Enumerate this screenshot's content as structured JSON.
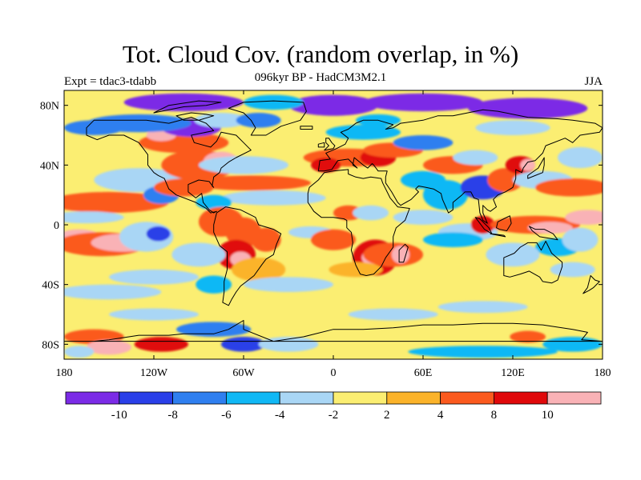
{
  "title": "Tot. Cloud Cov. (random overlap, in %)",
  "subtitle": "096kyr BP - HadCM3M2.1",
  "left_label": "Expt = tdac3-tdabb",
  "right_label": "JJA",
  "colors": {
    "land_outline": "#000000",
    "frame": "#000000"
  },
  "map": {
    "projection": "cylindrical-equidistant",
    "lon_range": [
      -180,
      180
    ],
    "lat_range": [
      -90,
      90
    ],
    "x_ticks": [
      {
        "lon": -180,
        "label": "180"
      },
      {
        "lon": -120,
        "label": "120W"
      },
      {
        "lon": -60,
        "label": "60W"
      },
      {
        "lon": 0,
        "label": "0"
      },
      {
        "lon": 60,
        "label": "60E"
      },
      {
        "lon": 120,
        "label": "120E"
      },
      {
        "lon": 180,
        "label": "180"
      }
    ],
    "y_ticks": [
      {
        "lat": 80,
        "label": "80N"
      },
      {
        "lat": 40,
        "label": "40N"
      },
      {
        "lat": 0,
        "label": "0"
      },
      {
        "lat": -40,
        "label": "40S"
      },
      {
        "lat": -80,
        "label": "80S"
      }
    ]
  },
  "colorbar": {
    "bins": [
      {
        "color": "#7B2BE6"
      },
      {
        "color": "#2A3FE8"
      },
      {
        "color": "#2F7FF0"
      },
      {
        "color": "#10B8F5"
      },
      {
        "color": "#A9D6F5"
      },
      {
        "color": "#FBEE72"
      },
      {
        "color": "#FBB32A"
      },
      {
        "color": "#FB5A1E"
      },
      {
        "color": "#E0080A"
      },
      {
        "color": "#F9B2B6"
      }
    ],
    "boundary_labels": [
      "-10",
      "-8",
      "-6",
      "-4",
      "-2",
      "2",
      "4",
      "8",
      "10"
    ]
  },
  "chart_data": {
    "type": "heatmap",
    "field": "Total cloud cover difference (random overlap), %",
    "season": "JJA",
    "levels": [
      -10,
      -8,
      -6,
      -4,
      -2,
      2,
      4,
      8,
      10
    ],
    "background_bin": 5,
    "anomalies": [
      {
        "lon": -170,
        "lat": -8,
        "rx": 14,
        "ry": 5,
        "bin": 9
      },
      {
        "lon": -155,
        "lat": -13,
        "rx": 30,
        "ry": 8,
        "bin": 7
      },
      {
        "lon": -140,
        "lat": -12,
        "rx": 22,
        "ry": 6,
        "bin": 9
      },
      {
        "lon": -125,
        "lat": -8,
        "rx": 18,
        "ry": 10,
        "bin": 4
      },
      {
        "lon": -117,
        "lat": -6,
        "rx": 8,
        "ry": 5,
        "bin": 1
      },
      {
        "lon": -150,
        "lat": 15,
        "rx": 40,
        "ry": 7,
        "bin": 7
      },
      {
        "lon": -165,
        "lat": 5,
        "rx": 25,
        "ry": 4,
        "bin": 4
      },
      {
        "lon": -130,
        "lat": 30,
        "rx": 30,
        "ry": 8,
        "bin": 4
      },
      {
        "lon": -115,
        "lat": 20,
        "rx": 12,
        "ry": 6,
        "bin": 2
      },
      {
        "lon": -100,
        "lat": 25,
        "rx": 20,
        "ry": 6,
        "bin": 7
      },
      {
        "lon": -90,
        "lat": 40,
        "rx": 25,
        "ry": 10,
        "bin": 7
      },
      {
        "lon": -75,
        "lat": 42,
        "rx": 12,
        "ry": 7,
        "bin": 9
      },
      {
        "lon": -100,
        "lat": 55,
        "rx": 30,
        "ry": 7,
        "bin": 7
      },
      {
        "lon": -115,
        "lat": 60,
        "rx": 10,
        "ry": 4,
        "bin": 9
      },
      {
        "lon": -95,
        "lat": 65,
        "rx": 20,
        "ry": 6,
        "bin": 0
      },
      {
        "lon": -130,
        "lat": 68,
        "rx": 35,
        "ry": 6,
        "bin": 2
      },
      {
        "lon": -160,
        "lat": 65,
        "rx": 20,
        "ry": 5,
        "bin": 2
      },
      {
        "lon": -75,
        "lat": 70,
        "rx": 18,
        "ry": 5,
        "bin": 4
      },
      {
        "lon": -50,
        "lat": 70,
        "rx": 15,
        "ry": 5,
        "bin": 2
      },
      {
        "lon": -60,
        "lat": 40,
        "rx": 30,
        "ry": 6,
        "bin": 4
      },
      {
        "lon": -55,
        "lat": 28,
        "rx": 40,
        "ry": 5,
        "bin": 7
      },
      {
        "lon": -40,
        "lat": 18,
        "rx": 35,
        "ry": 5,
        "bin": 4
      },
      {
        "lon": -80,
        "lat": 15,
        "rx": 12,
        "ry": 5,
        "bin": 3
      },
      {
        "lon": -75,
        "lat": 2,
        "rx": 15,
        "ry": 10,
        "bin": 7
      },
      {
        "lon": -60,
        "lat": -5,
        "rx": 12,
        "ry": 10,
        "bin": 7
      },
      {
        "lon": -65,
        "lat": -20,
        "rx": 13,
        "ry": 10,
        "bin": 8
      },
      {
        "lon": -62,
        "lat": -23,
        "rx": 7,
        "ry": 5,
        "bin": 9
      },
      {
        "lon": -45,
        "lat": -10,
        "rx": 10,
        "ry": 8,
        "bin": 7
      },
      {
        "lon": -50,
        "lat": -30,
        "rx": 18,
        "ry": 8,
        "bin": 6
      },
      {
        "lon": -90,
        "lat": -20,
        "rx": 18,
        "ry": 8,
        "bin": 4
      },
      {
        "lon": -80,
        "lat": -40,
        "rx": 12,
        "ry": 6,
        "bin": 3
      },
      {
        "lon": -120,
        "lat": -35,
        "rx": 30,
        "ry": 5,
        "bin": 4
      },
      {
        "lon": -150,
        "lat": -45,
        "rx": 35,
        "ry": 5,
        "bin": 4
      },
      {
        "lon": -30,
        "lat": -40,
        "rx": 30,
        "ry": 5,
        "bin": 4
      },
      {
        "lon": -15,
        "lat": -5,
        "rx": 15,
        "ry": 4,
        "bin": 4
      },
      {
        "lon": 0,
        "lat": -10,
        "rx": 15,
        "ry": 7,
        "bin": 7
      },
      {
        "lon": 10,
        "lat": 8,
        "rx": 10,
        "ry": 5,
        "bin": 7
      },
      {
        "lon": 25,
        "lat": 8,
        "rx": 12,
        "ry": 5,
        "bin": 4
      },
      {
        "lon": 28,
        "lat": -22,
        "rx": 15,
        "ry": 12,
        "bin": 8
      },
      {
        "lon": 25,
        "lat": -22,
        "rx": 6,
        "ry": 5,
        "bin": 9
      },
      {
        "lon": 40,
        "lat": -20,
        "rx": 20,
        "ry": 8,
        "bin": 7
      },
      {
        "lon": 45,
        "lat": -20,
        "rx": 6,
        "ry": 6,
        "bin": 9
      },
      {
        "lon": 15,
        "lat": -30,
        "rx": 18,
        "ry": 5,
        "bin": 6
      },
      {
        "lon": 10,
        "lat": 45,
        "rx": 30,
        "ry": 6,
        "bin": 7
      },
      {
        "lon": -5,
        "lat": 40,
        "rx": 10,
        "ry": 5,
        "bin": 8
      },
      {
        "lon": 30,
        "lat": 45,
        "rx": 12,
        "ry": 6,
        "bin": 8
      },
      {
        "lon": 40,
        "lat": 50,
        "rx": 20,
        "ry": 5,
        "bin": 7
      },
      {
        "lon": 20,
        "lat": 62,
        "rx": 25,
        "ry": 5,
        "bin": 3
      },
      {
        "lon": 60,
        "lat": 55,
        "rx": 20,
        "ry": 5,
        "bin": 2
      },
      {
        "lon": 80,
        "lat": 40,
        "rx": 20,
        "ry": 6,
        "bin": 7
      },
      {
        "lon": 95,
        "lat": 45,
        "rx": 15,
        "ry": 5,
        "bin": 4
      },
      {
        "lon": 60,
        "lat": 30,
        "rx": 15,
        "ry": 6,
        "bin": 3
      },
      {
        "lon": 75,
        "lat": 20,
        "rx": 15,
        "ry": 10,
        "bin": 3
      },
      {
        "lon": 100,
        "lat": 25,
        "rx": 15,
        "ry": 8,
        "bin": 1
      },
      {
        "lon": 115,
        "lat": 30,
        "rx": 12,
        "ry": 8,
        "bin": 7
      },
      {
        "lon": 125,
        "lat": 40,
        "rx": 10,
        "ry": 6,
        "bin": 8
      },
      {
        "lon": 130,
        "lat": 40,
        "rx": 5,
        "ry": 4,
        "bin": 9
      },
      {
        "lon": 140,
        "lat": 30,
        "rx": 20,
        "ry": 6,
        "bin": 4
      },
      {
        "lon": 160,
        "lat": 25,
        "rx": 25,
        "ry": 6,
        "bin": 7
      },
      {
        "lon": 165,
        "lat": 45,
        "rx": 15,
        "ry": 7,
        "bin": 4
      },
      {
        "lon": 60,
        "lat": 5,
        "rx": 20,
        "ry": 5,
        "bin": 4
      },
      {
        "lon": 90,
        "lat": -5,
        "rx": 20,
        "ry": 6,
        "bin": 4
      },
      {
        "lon": 80,
        "lat": -10,
        "rx": 20,
        "ry": 5,
        "bin": 3
      },
      {
        "lon": 100,
        "lat": 0,
        "rx": 8,
        "ry": 6,
        "bin": 8
      },
      {
        "lon": 135,
        "lat": 0,
        "rx": 30,
        "ry": 6,
        "bin": 7
      },
      {
        "lon": 145,
        "lat": -2,
        "rx": 15,
        "ry": 4,
        "bin": 9
      },
      {
        "lon": 170,
        "lat": 5,
        "rx": 15,
        "ry": 5,
        "bin": 9
      },
      {
        "lon": 150,
        "lat": -15,
        "rx": 15,
        "ry": 6,
        "bin": 3
      },
      {
        "lon": 165,
        "lat": -10,
        "rx": 12,
        "ry": 8,
        "bin": 4
      },
      {
        "lon": 120,
        "lat": -20,
        "rx": 18,
        "ry": 8,
        "bin": 4
      },
      {
        "lon": 160,
        "lat": -30,
        "rx": 15,
        "ry": 5,
        "bin": 4
      },
      {
        "lon": 100,
        "lat": -55,
        "rx": 30,
        "ry": 4,
        "bin": 4
      },
      {
        "lon": 40,
        "lat": -60,
        "rx": 30,
        "ry": 4,
        "bin": 4
      },
      {
        "lon": -120,
        "lat": -60,
        "rx": 30,
        "ry": 4,
        "bin": 4
      },
      {
        "lon": 0,
        "lat": 80,
        "rx": 30,
        "ry": 7,
        "bin": 0
      },
      {
        "lon": 60,
        "lat": 82,
        "rx": 40,
        "ry": 6,
        "bin": 0
      },
      {
        "lon": 130,
        "lat": 78,
        "rx": 40,
        "ry": 7,
        "bin": 0
      },
      {
        "lon": -100,
        "lat": 82,
        "rx": 40,
        "ry": 6,
        "bin": 0
      },
      {
        "lon": -40,
        "lat": 82,
        "rx": 20,
        "ry": 5,
        "bin": 3
      },
      {
        "lon": 30,
        "lat": 70,
        "rx": 15,
        "ry": 4,
        "bin": 3
      },
      {
        "lon": 120,
        "lat": 65,
        "rx": 25,
        "ry": 5,
        "bin": 4
      },
      {
        "lon": -160,
        "lat": -75,
        "rx": 20,
        "ry": 5,
        "bin": 7
      },
      {
        "lon": -150,
        "lat": -82,
        "rx": 15,
        "ry": 5,
        "bin": 9
      },
      {
        "lon": -115,
        "lat": -80,
        "rx": 18,
        "ry": 5,
        "bin": 8
      },
      {
        "lon": -80,
        "lat": -70,
        "rx": 25,
        "ry": 5,
        "bin": 2
      },
      {
        "lon": -60,
        "lat": -80,
        "rx": 15,
        "ry": 5,
        "bin": 1
      },
      {
        "lon": -30,
        "lat": -80,
        "rx": 20,
        "ry": 5,
        "bin": 4
      },
      {
        "lon": 100,
        "lat": -85,
        "rx": 50,
        "ry": 4,
        "bin": 3
      },
      {
        "lon": 160,
        "lat": -80,
        "rx": 20,
        "ry": 5,
        "bin": 3
      },
      {
        "lon": 130,
        "lat": -75,
        "rx": 12,
        "ry": 4,
        "bin": 7
      },
      {
        "lon": -170,
        "lat": -85,
        "rx": 10,
        "ry": 4,
        "bin": 4
      }
    ]
  }
}
